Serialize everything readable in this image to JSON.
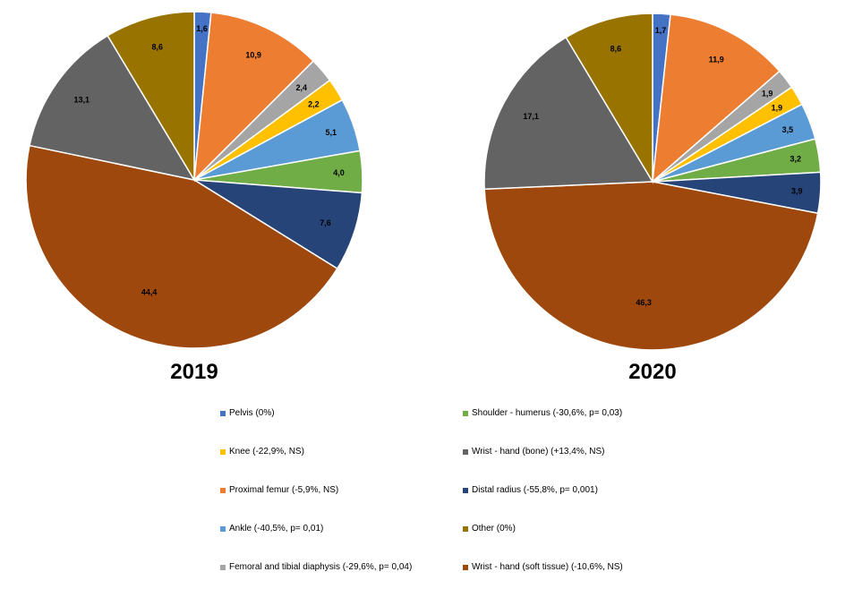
{
  "chart_data": [
    {
      "type": "pie",
      "title": "2019",
      "slices": [
        {
          "name": "Pelvis",
          "value": 1.6,
          "label": "1,6",
          "color": "#4472c4"
        },
        {
          "name": "Proximal femur",
          "value": 10.9,
          "label": "10,9",
          "color": "#ed7d31"
        },
        {
          "name": "Femoral and tibial diaphysis",
          "value": 2.4,
          "label": "2,4",
          "color": "#a5a5a5"
        },
        {
          "name": "Knee",
          "value": 2.2,
          "label": "2,2",
          "color": "#ffc000"
        },
        {
          "name": "Ankle",
          "value": 5.1,
          "label": "5,1",
          "color": "#5b9bd5"
        },
        {
          "name": "Shoulder - humerus",
          "value": 4.0,
          "label": "4,0",
          "color": "#70ad47"
        },
        {
          "name": "Distal radius",
          "value": 7.6,
          "label": "7,6",
          "color": "#264478"
        },
        {
          "name": "Wrist - hand (soft tissue)",
          "value": 44.4,
          "label": "44,4",
          "color": "#9e480e"
        },
        {
          "name": "Wrist - hand (bone)",
          "value": 13.1,
          "label": "13,1",
          "color": "#636363"
        },
        {
          "name": "Other",
          "value": 8.6,
          "label": "8,6",
          "color": "#997300"
        }
      ]
    },
    {
      "type": "pie",
      "title": "2020",
      "slices": [
        {
          "name": "Pelvis",
          "value": 1.7,
          "label": "1,7",
          "color": "#4472c4"
        },
        {
          "name": "Proximal femur",
          "value": 11.9,
          "label": "11,9",
          "color": "#ed7d31"
        },
        {
          "name": "Femoral and tibial diaphysis",
          "value": 1.9,
          "label": "1,9",
          "color": "#a5a5a5"
        },
        {
          "name": "Knee",
          "value": 1.9,
          "label": "1,9",
          "color": "#ffc000"
        },
        {
          "name": "Ankle",
          "value": 3.5,
          "label": "3,5",
          "color": "#5b9bd5"
        },
        {
          "name": "Shoulder - humerus",
          "value": 3.2,
          "label": "3,2",
          "color": "#70ad47"
        },
        {
          "name": "Distal radius",
          "value": 3.9,
          "label": "3,9",
          "color": "#264478"
        },
        {
          "name": "Wrist - hand (soft tissue)",
          "value": 46.3,
          "label": "46,3",
          "color": "#9e480e"
        },
        {
          "name": "Wrist - hand (bone)",
          "value": 17.1,
          "label": "17,1",
          "color": "#636363"
        },
        {
          "name": "Other",
          "value": 8.6,
          "label": "8,6",
          "color": "#997300"
        }
      ]
    }
  ],
  "legend": [
    {
      "text": "Pelvis (0%)",
      "color": "#4472c4"
    },
    {
      "text": "Knee (-22,9%, NS)",
      "color": "#ffc000"
    },
    {
      "text": "Proximal femur (-5,9%, NS)",
      "color": "#ed7d31"
    },
    {
      "text": "Ankle (-40,5%, p= 0,01)",
      "color": "#5b9bd5"
    },
    {
      "text": "Femoral and tibial diaphysis (-29,6%, p= 0,04)",
      "color": "#a5a5a5"
    },
    {
      "text": "Shoulder - humerus (-30,6%, p= 0,03)",
      "color": "#70ad47"
    },
    {
      "text": "Wrist - hand (bone) (+13,4%, NS)",
      "color": "#636363"
    },
    {
      "text": "Distal radius (-55,8%, p= 0,001)",
      "color": "#264478"
    },
    {
      "text": "Other (0%)",
      "color": "#997300"
    },
    {
      "text": "Wrist - hand (soft tissue) (-10,6%, NS)",
      "color": "#9e480e"
    }
  ]
}
